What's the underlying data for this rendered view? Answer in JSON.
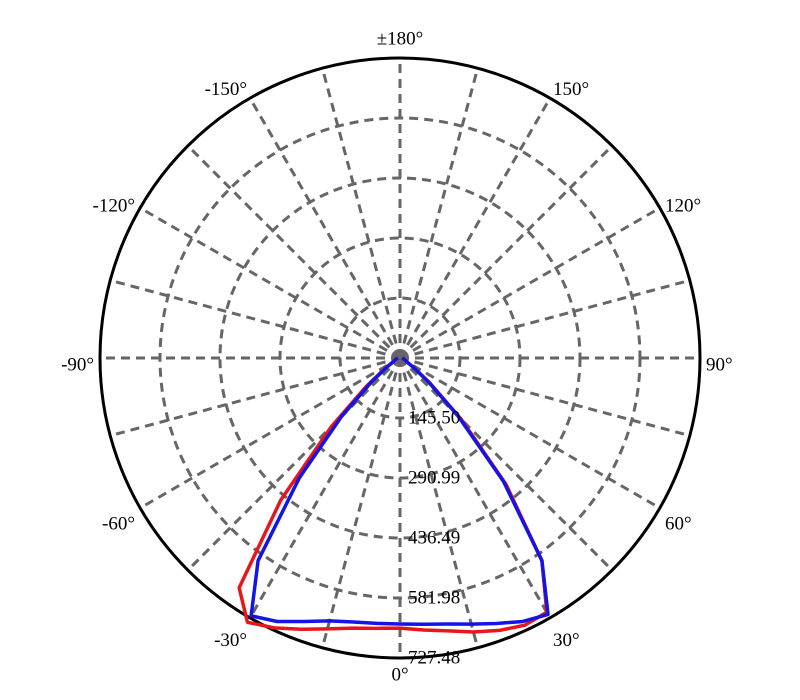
{
  "chart_data": {
    "type": "polar",
    "rlim": [
      0,
      727.48
    ],
    "rticks": [
      {
        "value": 145.5,
        "label": "145.50"
      },
      290.99,
      436.49,
      581.98,
      727.48
    ],
    "thetaticks": [
      {
        "value": 0,
        "label": "0°"
      },
      {
        "value": 30,
        "label": "30°"
      },
      {
        "value": 60,
        "label": "60°"
      },
      {
        "value": 90,
        "label": "90°"
      },
      {
        "value": 120,
        "label": "120°"
      },
      {
        "value": 150,
        "label": "150°"
      },
      {
        "value": 180,
        "label": "±180°"
      },
      {
        "value": -150,
        "label": "-150°"
      },
      {
        "value": -120,
        "label": "-120°"
      },
      {
        "value": -90,
        "label": "-90°"
      },
      {
        "value": -60,
        "label": "-60°"
      },
      {
        "value": -30,
        "label": "-30°"
      }
    ],
    "thetagrid": [
      -165,
      -150,
      -135,
      -120,
      -105,
      -90,
      -75,
      -60,
      -45,
      -30,
      -15,
      0,
      15,
      30,
      45,
      60,
      75,
      90,
      105,
      120,
      135,
      150,
      165,
      180
    ],
    "grid": true,
    "theta": [
      -90,
      -85,
      -80,
      -75,
      -70,
      -65,
      -60,
      -55,
      -50,
      -45,
      -40,
      -35,
      -30,
      -25,
      -20,
      -15,
      -10,
      -5,
      0,
      5,
      10,
      15,
      20,
      25,
      30,
      35,
      40,
      45,
      50,
      55,
      60,
      65,
      70,
      75,
      80,
      85,
      90
    ],
    "series": [
      {
        "color": "#e8161b",
        "values": [
          5,
          6,
          8,
          10,
          12,
          15,
          22,
          45,
          105,
          235,
          450,
          680,
          740,
          722,
          700,
          680,
          665,
          658,
          655,
          662,
          672,
          688,
          703,
          715,
          712,
          600,
          400,
          210,
          95,
          42,
          20,
          15,
          12,
          10,
          8,
          6,
          5
        ]
      },
      {
        "color": "#1414e6",
        "values": [
          5,
          6,
          8,
          10,
          12,
          15,
          20,
          40,
          90,
          200,
          380,
          600,
          722,
          705,
          680,
          660,
          650,
          646,
          645,
          648,
          655,
          668,
          685,
          705,
          718,
          600,
          390,
          200,
          90,
          40,
          20,
          15,
          12,
          10,
          8,
          6,
          5
        ]
      }
    ]
  }
}
